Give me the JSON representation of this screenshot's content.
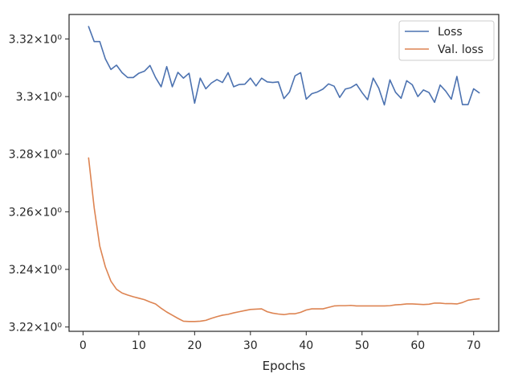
{
  "chart_data": {
    "type": "line",
    "title": "",
    "xlabel": "Epochs",
    "ylabel": "",
    "xlim": [
      -2.5,
      74.5
    ],
    "ylim": [
      3.2185,
      3.3285
    ],
    "grid": false,
    "legend_position": "top-right",
    "x_ticks": [
      0,
      10,
      20,
      30,
      40,
      50,
      60,
      70
    ],
    "x_tick_labels": [
      "0",
      "10",
      "20",
      "30",
      "40",
      "50",
      "60",
      "70"
    ],
    "y_ticks": [
      3.22,
      3.24,
      3.26,
      3.28,
      3.3,
      3.32
    ],
    "y_tick_labels": [
      "3.22×10⁰",
      "3.24×10⁰",
      "3.26×10⁰",
      "3.28×10⁰",
      "3.3×10⁰",
      "3.32×10⁰"
    ],
    "series": [
      {
        "name": "Loss",
        "color": "#4c72b0",
        "x": [
          1,
          2,
          3,
          4,
          5,
          6,
          7,
          8,
          9,
          10,
          11,
          12,
          13,
          14,
          15,
          16,
          17,
          18,
          19,
          20,
          21,
          22,
          23,
          24,
          25,
          26,
          27,
          28,
          29,
          30,
          31,
          32,
          33,
          34,
          35,
          36,
          37,
          38,
          39,
          40,
          41,
          42,
          43,
          44,
          45,
          46,
          47,
          48,
          49,
          50,
          51,
          52,
          53,
          54,
          55,
          56,
          57,
          58,
          59,
          60,
          61,
          62,
          63,
          64,
          65,
          66,
          67,
          68,
          69,
          70,
          71
        ],
        "values": [
          3.3243,
          3.3191,
          3.3191,
          3.3131,
          3.3094,
          3.3109,
          3.3083,
          3.3066,
          3.3066,
          3.3081,
          3.3088,
          3.3108,
          3.3066,
          3.3034,
          3.3104,
          3.3034,
          3.3084,
          3.3064,
          3.3081,
          3.2977,
          3.3064,
          3.3027,
          3.3047,
          3.3059,
          3.3049,
          3.3083,
          3.3034,
          3.3042,
          3.3043,
          3.3064,
          3.3037,
          3.3064,
          3.3051,
          3.3049,
          3.3051,
          3.2993,
          3.3016,
          3.3072,
          3.3083,
          3.2991,
          3.301,
          3.3016,
          3.3026,
          3.3044,
          3.3036,
          3.2997,
          3.3026,
          3.3031,
          3.3043,
          3.3014,
          3.2989,
          3.3064,
          3.3029,
          3.2971,
          3.3058,
          3.3015,
          3.2994,
          3.3055,
          3.3041,
          3.3,
          3.3023,
          3.3014,
          3.298,
          3.304,
          3.3019,
          3.2991,
          3.307,
          3.2972,
          3.2972,
          3.3027,
          3.3013
        ]
      },
      {
        "name": "Val. loss",
        "color": "#dd8452",
        "x": [
          1,
          2,
          3,
          4,
          5,
          6,
          7,
          8,
          9,
          10,
          11,
          12,
          13,
          14,
          15,
          16,
          17,
          18,
          19,
          20,
          21,
          22,
          23,
          24,
          25,
          26,
          27,
          28,
          29,
          30,
          31,
          32,
          33,
          34,
          35,
          36,
          37,
          38,
          39,
          40,
          41,
          42,
          43,
          44,
          45,
          46,
          47,
          48,
          49,
          50,
          51,
          52,
          53,
          54,
          55,
          56,
          57,
          58,
          59,
          60,
          61,
          62,
          63,
          64,
          65,
          66,
          67,
          68,
          69,
          70,
          71
        ],
        "values": [
          3.2787,
          3.2614,
          3.2481,
          3.2409,
          3.2359,
          3.2331,
          3.2318,
          3.2311,
          3.2305,
          3.23,
          3.2295,
          3.2287,
          3.228,
          3.2265,
          3.2252,
          3.2241,
          3.223,
          3.222,
          3.2219,
          3.2219,
          3.222,
          3.2223,
          3.223,
          3.2236,
          3.2241,
          3.2244,
          3.2249,
          3.2253,
          3.2257,
          3.2261,
          3.2262,
          3.2263,
          3.2253,
          3.2248,
          3.2245,
          3.2243,
          3.2246,
          3.2246,
          3.2251,
          3.2259,
          3.2263,
          3.2263,
          3.2263,
          3.2268,
          3.2273,
          3.2274,
          3.2274,
          3.2275,
          3.2273,
          3.2273,
          3.2273,
          3.2273,
          3.2273,
          3.2273,
          3.2274,
          3.2277,
          3.2278,
          3.228,
          3.228,
          3.2279,
          3.2278,
          3.2279,
          3.2283,
          3.2283,
          3.2281,
          3.2281,
          3.228,
          3.2285,
          3.2293,
          3.2296,
          3.2298
        ]
      }
    ]
  }
}
